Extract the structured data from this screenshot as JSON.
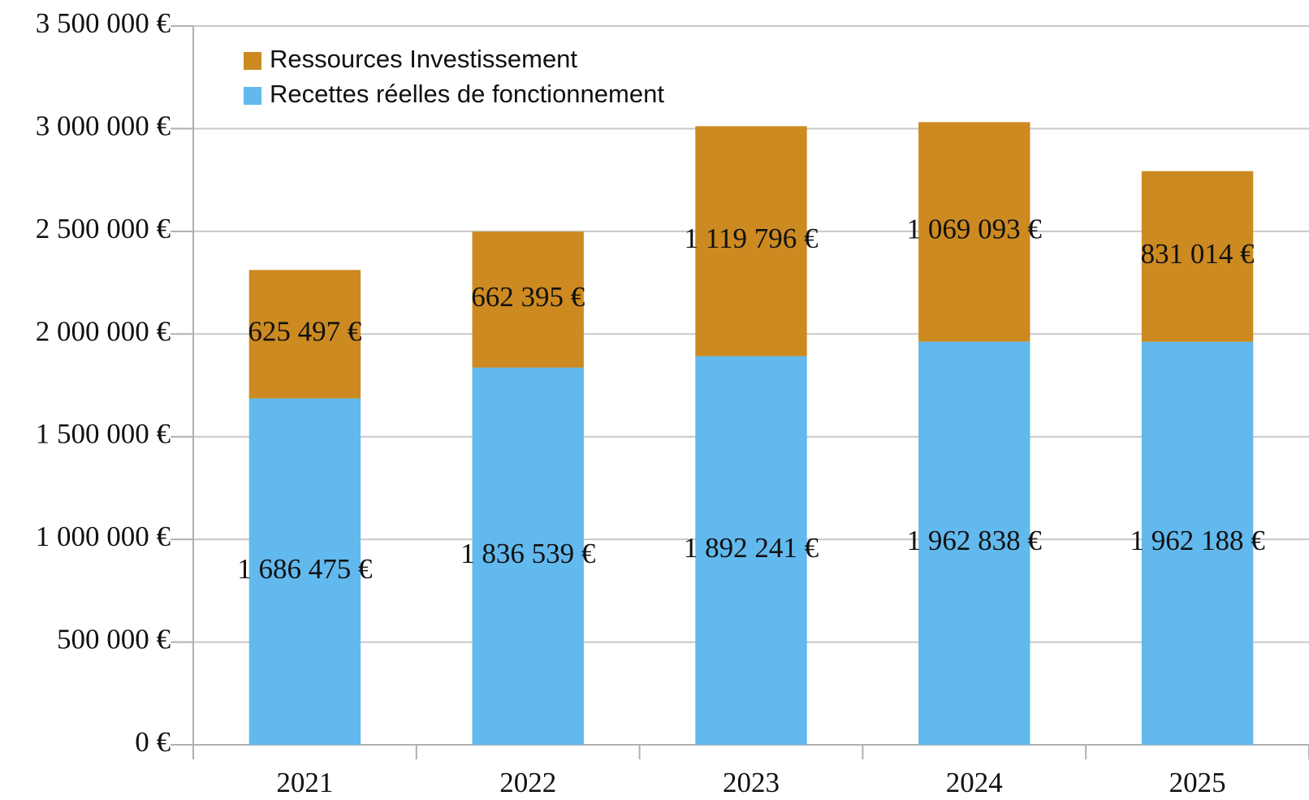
{
  "chart_data": {
    "type": "stacked_bar",
    "categories": [
      "2021",
      "2022",
      "2023",
      "2024",
      "2025"
    ],
    "series": [
      {
        "name": "Recettes réelles de fonctionnement",
        "color": "#62b9ed",
        "values": [
          1686475,
          1836539,
          1892241,
          1962838,
          1962188
        ],
        "value_labels": [
          "1 686 475 €",
          "1 836 539 €",
          "1 892 241 €",
          "1 962 838 €",
          "1 962 188 €"
        ]
      },
      {
        "name": "Ressources Investissement",
        "color": "#cc8a21",
        "values": [
          625497,
          662395,
          1119796,
          1069093,
          831014
        ],
        "value_labels": [
          "625 497 €",
          "662 395 €",
          "1 119 796 €",
          "1 069 093 €",
          "831 014 €"
        ]
      }
    ],
    "ylim": [
      0,
      3500000
    ],
    "yticks": [
      {
        "value": 0,
        "label": "0 €"
      },
      {
        "value": 500000,
        "label": "500 000 €"
      },
      {
        "value": 1000000,
        "label": "1 000 000 €"
      },
      {
        "value": 1500000,
        "label": "1 500 000 €"
      },
      {
        "value": 2000000,
        "label": "2 000 000 €"
      },
      {
        "value": 2500000,
        "label": "2 500 000 €"
      },
      {
        "value": 3000000,
        "label": "3 000 000 €"
      },
      {
        "value": 3500000,
        "label": "3 500 000 €"
      }
    ],
    "grid": true,
    "legend": "top-left"
  }
}
